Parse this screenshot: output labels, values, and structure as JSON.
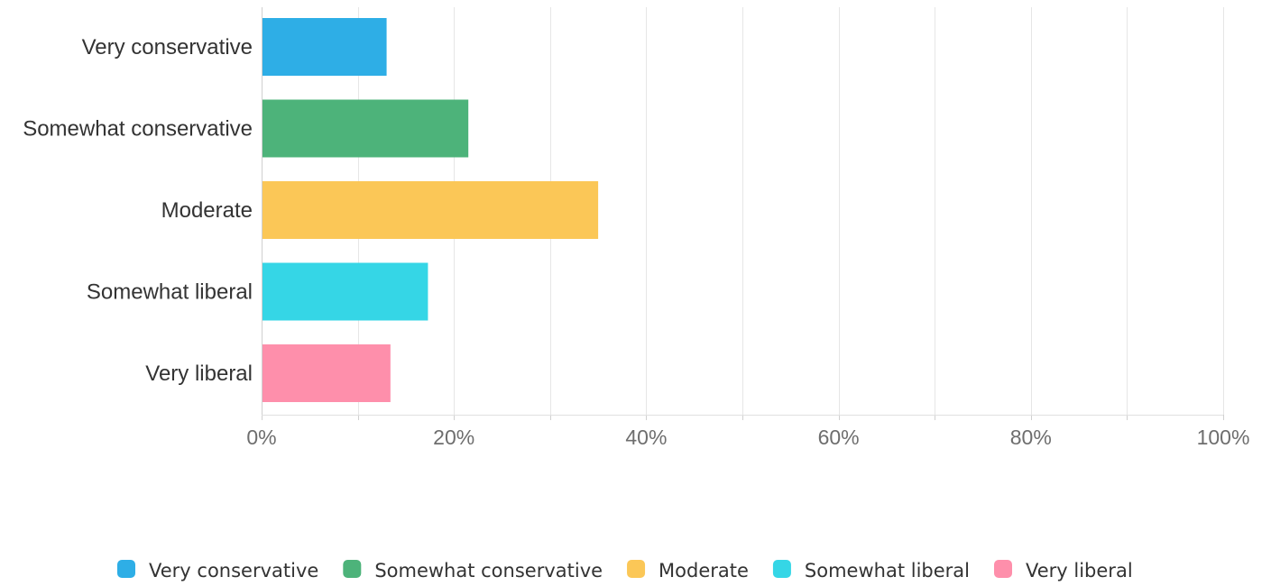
{
  "chart_data": {
    "type": "bar",
    "orientation": "horizontal",
    "categories": [
      "Very conservative",
      "Somewhat conservative",
      "Moderate",
      "Somewhat liberal",
      "Very liberal"
    ],
    "values": [
      13,
      21.5,
      35,
      17.3,
      13.4
    ],
    "value_unit": "%",
    "colors": [
      "#2eaee6",
      "#4db37a",
      "#fbc757",
      "#35d6e6",
      "#fe8fab"
    ],
    "xlim": [
      0,
      100
    ],
    "ticks": [
      0,
      20,
      40,
      60,
      80,
      100
    ],
    "tick_labels": [
      "0%",
      "20%",
      "40%",
      "60%",
      "80%",
      "100%"
    ],
    "grid": true,
    "legend": {
      "placement": "bottom",
      "items": [
        "Very conservative",
        "Somewhat conservative",
        "Moderate",
        "Somewhat liberal",
        "Very liberal"
      ]
    },
    "title": "",
    "xlabel": "",
    "ylabel": ""
  }
}
